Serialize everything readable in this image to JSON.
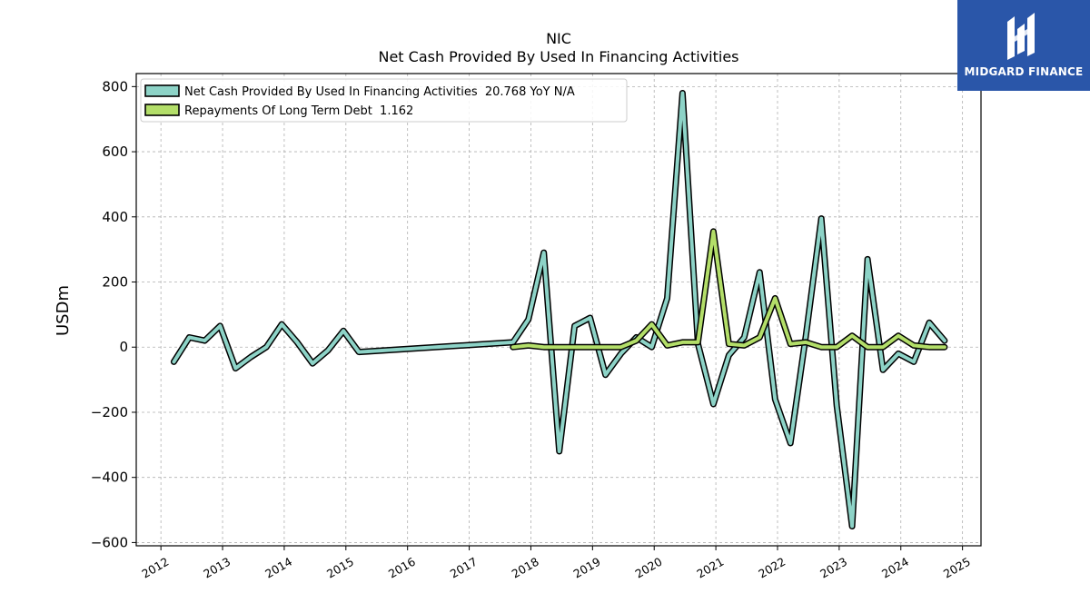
{
  "chart_data": {
    "type": "line",
    "title": "NIC",
    "subtitle": "Net Cash Provided By Used In Financing Activities",
    "ylabel": "USDm",
    "xlabel": "",
    "ylim": [
      -610,
      840
    ],
    "xlim": [
      2011.6,
      2025.3
    ],
    "y_ticks": [
      800,
      600,
      400,
      200,
      0,
      -200,
      -400,
      -600
    ],
    "y_tick_labels": [
      "800",
      "600",
      "400",
      "200",
      "0",
      "−200",
      "−400",
      "−600"
    ],
    "x_ticks": [
      2012,
      2013,
      2014,
      2015,
      2016,
      2017,
      2018,
      2019,
      2020,
      2021,
      2022,
      2023,
      2024,
      2025
    ],
    "x_tick_labels": [
      "2012",
      "2013",
      "2014",
      "2015",
      "2016",
      "2017",
      "2018",
      "2019",
      "2020",
      "2021",
      "2022",
      "2023",
      "2024",
      "2025"
    ],
    "grid": true,
    "legend_position": "top-left",
    "series": [
      {
        "name": "Net Cash Provided By Used In Financing Activities  20.768 YoY N/A",
        "color": "#8dd3c7",
        "x": [
          2012.21,
          2012.46,
          2012.71,
          2012.96,
          2013.21,
          2013.46,
          2013.71,
          2013.96,
          2014.21,
          2014.46,
          2014.71,
          2014.96,
          2015.21,
          2017.71,
          2017.96,
          2018.21,
          2018.46,
          2018.71,
          2018.96,
          2019.21,
          2019.46,
          2019.71,
          2019.96,
          2020.21,
          2020.46,
          2020.71,
          2020.96,
          2021.21,
          2021.46,
          2021.71,
          2021.96,
          2022.21,
          2022.46,
          2022.71,
          2022.96,
          2023.21,
          2023.46,
          2023.71,
          2023.96,
          2024.21,
          2024.46,
          2024.71
        ],
        "values": [
          -45,
          30,
          20,
          65,
          -65,
          -30,
          0,
          70,
          15,
          -50,
          -10,
          50,
          -15,
          15,
          85,
          290,
          -320,
          65,
          90,
          -85,
          -20,
          30,
          0,
          150,
          780,
          10,
          -175,
          -25,
          30,
          230,
          -160,
          -295,
          35,
          395,
          -180,
          -550,
          270,
          -70,
          -20,
          -45,
          75,
          20
        ]
      },
      {
        "name": "Repayments Of Long Term Debt  1.162",
        "color": "#b3de69",
        "x": [
          2017.71,
          2017.96,
          2018.21,
          2018.46,
          2018.71,
          2018.96,
          2019.21,
          2019.46,
          2019.71,
          2019.96,
          2020.21,
          2020.46,
          2020.71,
          2020.96,
          2021.21,
          2021.46,
          2021.71,
          2021.96,
          2022.21,
          2022.46,
          2022.71,
          2022.96,
          2023.21,
          2023.46,
          2023.71,
          2023.96,
          2024.21,
          2024.46,
          2024.71
        ],
        "values": [
          0,
          5,
          0,
          0,
          0,
          0,
          0,
          0,
          20,
          70,
          5,
          15,
          15,
          355,
          10,
          5,
          30,
          150,
          10,
          15,
          0,
          0,
          35,
          0,
          0,
          35,
          5,
          0,
          0
        ]
      }
    ]
  },
  "logo": {
    "text": "MIDGARD FINANCE",
    "icon": "midgard-logo-icon",
    "background": "#2a56a9"
  }
}
